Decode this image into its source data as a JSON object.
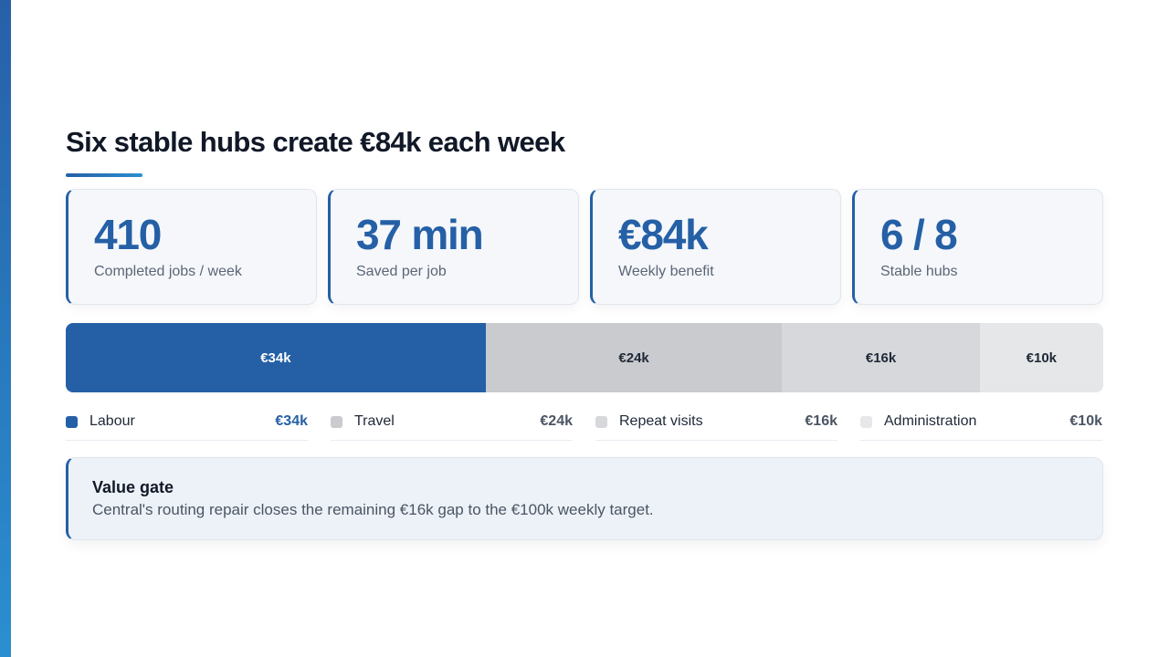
{
  "title": "Six stable hubs create €84k each week",
  "kpis": [
    {
      "value": "410",
      "label": "Completed jobs / week"
    },
    {
      "value": "37 min",
      "label": "Saved per job"
    },
    {
      "value": "€84k",
      "label": "Weekly benefit"
    },
    {
      "value": "6 / 8",
      "label": "Stable hubs"
    }
  ],
  "chart_data": {
    "type": "bar",
    "stacked": true,
    "orientation": "horizontal",
    "categories": [
      "Labour",
      "Travel",
      "Repeat visits",
      "Administration"
    ],
    "values": [
      34,
      24,
      16,
      10
    ],
    "value_labels": [
      "€34k",
      "€24k",
      "€16k",
      "€10k"
    ],
    "colors": [
      "#2560a6",
      "#c9cbcf",
      "#d6d8db",
      "#e6e7e9"
    ],
    "label_colors": [
      "#ffffff",
      "#1f2937",
      "#1f2937",
      "#1f2937"
    ],
    "title": "",
    "xlabel": "",
    "ylabel": ""
  },
  "legend": [
    {
      "name": "Labour",
      "value": "€34k",
      "swatch": "#2560a6"
    },
    {
      "name": "Travel",
      "value": "€24k",
      "swatch": "#c9cbcf"
    },
    {
      "name": "Repeat visits",
      "value": "€16k",
      "swatch": "#d6d8db"
    },
    {
      "name": "Administration",
      "value": "€10k",
      "swatch": "#e6e7e9"
    }
  ],
  "callout": {
    "title": "Value gate",
    "body": "Central's routing repair closes the remaining €16k gap to the €100k weekly target."
  }
}
